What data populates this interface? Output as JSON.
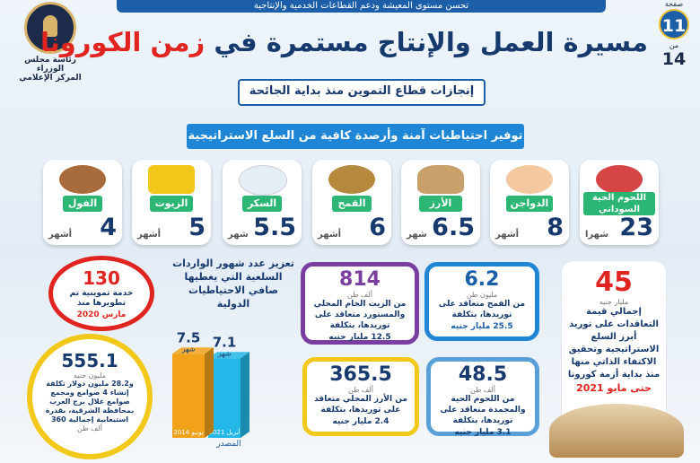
{
  "top_banner": "تحسن مستوى المعيشة ودعم القطاعات الخدمية والإنتاجية",
  "logo": {
    "line1": "رئاسة مجلس الوزراء",
    "line2": "المركز الإعلامي"
  },
  "page_counter": {
    "label_page": "صفحة",
    "current": "11",
    "label_of": "من",
    "total": "14"
  },
  "title": {
    "part1": "مسيرة العمل والإنتاج مستمرة في",
    "highlight": "زمن الكورونا"
  },
  "subtitle": "إنجازات قطاع التموين منذ بداية الجائحة",
  "section_title": "توفير احتياطيات آمنة وأرصدة كافية من السلع الاستراتيجية",
  "commodities": [
    {
      "label": "اللحوم الحية السوداني",
      "value": "23",
      "unit": "شهرا",
      "color": "#e04848"
    },
    {
      "label": "الدواجن",
      "value": "8",
      "unit": "أشهر",
      "color": "#f4c9a0"
    },
    {
      "label": "الأرز",
      "value": "6.5",
      "unit": "شهر",
      "color": "#c7a06a"
    },
    {
      "label": "القمح",
      "value": "6",
      "unit": "أشهر",
      "color": "#b58a3e"
    },
    {
      "label": "السكر",
      "value": "5.5",
      "unit": "شهر",
      "color": "#e6eef5"
    },
    {
      "label": "الزيوت",
      "value": "5",
      "unit": "أشهر",
      "color": "#f2c81a"
    },
    {
      "label": "الفول",
      "value": "4",
      "unit": "أشهر",
      "color": "#a86b3c"
    }
  ],
  "card_45": {
    "value": "45",
    "unit": "مليار جنيه",
    "text": "إجمالي قيمة التعاقدات على توريد أبرز السلع الاستراتيجية وتحقيق الاكتفاء الذاتي منها منذ بداية أزمة كورونا",
    "until": "حتى مايو 2021"
  },
  "card_6_2": {
    "value": "6.2",
    "unit": "مليون طن",
    "text": "من القمح متعاقد على توريدها، بتكلفة",
    "cost": "25.5 مليار جنيه"
  },
  "card_814": {
    "value": "814",
    "unit": "ألف طن",
    "text": "من الزيت الخام المحلي والمستورد متعاقد على توريدها، بتكلفة",
    "cost": "12.5 مليار جنيه"
  },
  "card_48_5": {
    "value": "48.5",
    "unit": "ألف طن",
    "text": "من اللحوم الحية والمجمدة متعاقد على توريدها، بتكلفة",
    "cost": "3.1 مليار جنيه"
  },
  "card_365_5": {
    "value": "365.5",
    "unit": "ألف طن",
    "text": "من الأرز المحلي متعاقد على توريدها، بتكلفة",
    "cost": "2.4 مليار جنيه"
  },
  "card_130": {
    "value": "130",
    "text": "خدمة تموينية تم تطويرها منذ",
    "since": "مارس 2020"
  },
  "card_555": {
    "value": "555.1",
    "unit": "مليون جنيه",
    "text": "و28.2 مليون دولار تكلفة إنشاء 4 صوامع ومجمع صوامع غلال برج العرب بمحافظة الشرقية، بقدرة استيعابية إجمالية 360",
    "tail": "ألف طن"
  },
  "chart_title": "تعزيز عدد شهور الواردات السلعية التي يغطيها صافي الاحتياطيات الدولية",
  "chart_data": {
    "type": "bar",
    "title": "تعزيز عدد شهور الواردات السلعية التي يغطيها صافي الاحتياطيات الدولية",
    "categories": [
      "أبريل 2021",
      "يونيو 2014"
    ],
    "values": [
      7.1,
      7.5
    ],
    "value_labels": [
      "7.1",
      "7.5"
    ],
    "unit": "شهر",
    "colors": [
      "#23b8e8",
      "#f2a21a"
    ]
  },
  "source_label": "المصدر"
}
